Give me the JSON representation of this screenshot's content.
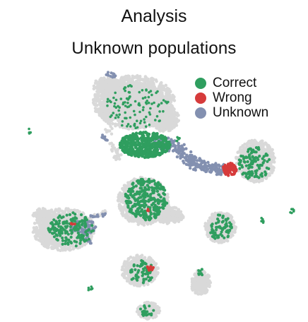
{
  "chart_data": {
    "type": "scatter",
    "title": "Analysis",
    "subtitle": "Unknown populations",
    "xlabel": "",
    "ylabel": "",
    "grid": false,
    "legend_position": "top-right",
    "background_color": "#d9d9d9",
    "series": [
      {
        "name": "Correct",
        "color": "#2f9e5f"
      },
      {
        "name": "Wrong",
        "color": "#d63b3b"
      },
      {
        "name": "Unknown",
        "color": "#8390b0"
      }
    ]
  }
}
